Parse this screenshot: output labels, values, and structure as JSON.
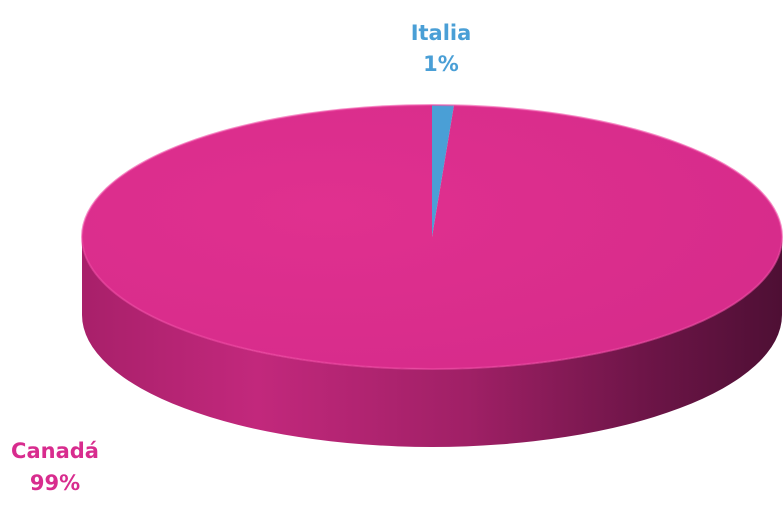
{
  "chart_data": {
    "type": "pie",
    "title": "",
    "style": "3d",
    "categories": [
      "Italia",
      "Canadá"
    ],
    "values": [
      1,
      99
    ],
    "value_labels": [
      "1%",
      "99%"
    ],
    "colors": [
      "#4a9fd6",
      "#d82c8e"
    ],
    "legend": "none"
  },
  "labels": {
    "italia": {
      "name": "Italia",
      "value": "1%"
    },
    "canada": {
      "name": "Canadá",
      "value": "99%"
    }
  }
}
